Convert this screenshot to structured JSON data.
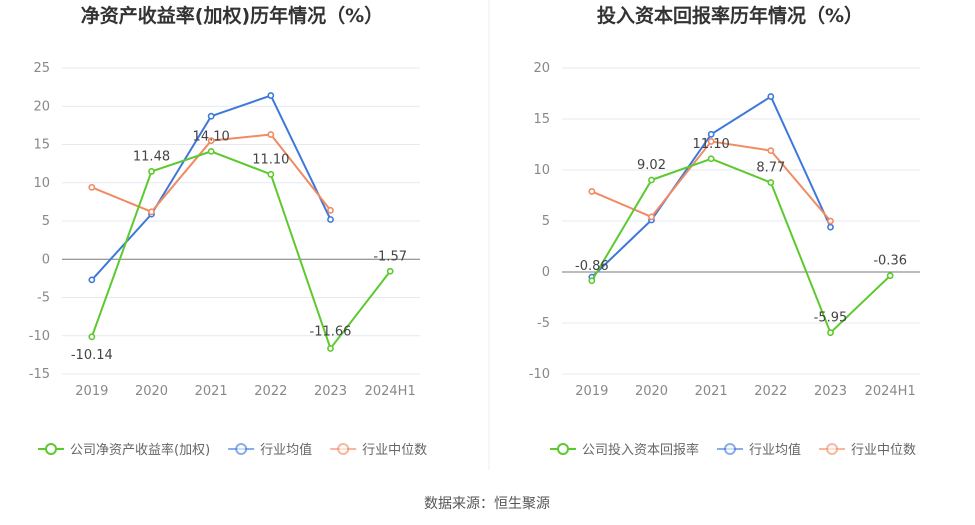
{
  "source_text": "数据来源：恒生聚源",
  "chart_data": [
    {
      "type": "line",
      "title": "净资产收益率(加权)历年情况（%）",
      "categories": [
        "2019",
        "2020",
        "2021",
        "2022",
        "2023",
        "2024H1"
      ],
      "ylim": [
        -15,
        25
      ],
      "yticks": [
        25,
        20,
        15,
        10,
        5,
        0,
        -5,
        -10,
        -15
      ],
      "series": [
        {
          "name": "公司净资产收益率(加权)",
          "color": "#5cc92e",
          "values": [
            -10.14,
            11.48,
            14.1,
            11.1,
            -11.66,
            -1.57
          ],
          "labels": [
            "-10.14",
            "11.48",
            "14.10",
            "11.10",
            "-11.66",
            "-1.57"
          ]
        },
        {
          "name": "行业均值",
          "color": "#3e78db",
          "values": [
            -2.7,
            5.9,
            18.7,
            21.4,
            5.2,
            null
          ]
        },
        {
          "name": "行业中位数",
          "color": "#f28a62",
          "values": [
            9.4,
            6.2,
            15.5,
            16.3,
            6.4,
            null
          ]
        }
      ]
    },
    {
      "type": "line",
      "title": "投入资本回报率历年情况（%）",
      "categories": [
        "2019",
        "2020",
        "2021",
        "2022",
        "2023",
        "2024H1"
      ],
      "ylim": [
        -10,
        20
      ],
      "yticks": [
        20,
        15,
        10,
        5,
        0,
        -5,
        -10
      ],
      "series": [
        {
          "name": "公司投入资本回报率",
          "color": "#5cc92e",
          "values": [
            -0.86,
            9.02,
            11.1,
            8.77,
            -5.95,
            -0.36
          ],
          "labels": [
            "-0.86",
            "9.02",
            "11.10",
            "8.77",
            "-5.95",
            "-0.36"
          ]
        },
        {
          "name": "行业均值",
          "color": "#3e78db",
          "values": [
            -0.5,
            5.1,
            13.5,
            17.2,
            4.4,
            null
          ]
        },
        {
          "name": "行业中位数",
          "color": "#f28a62",
          "values": [
            7.9,
            5.4,
            12.8,
            11.9,
            5.0,
            null
          ]
        }
      ]
    }
  ]
}
